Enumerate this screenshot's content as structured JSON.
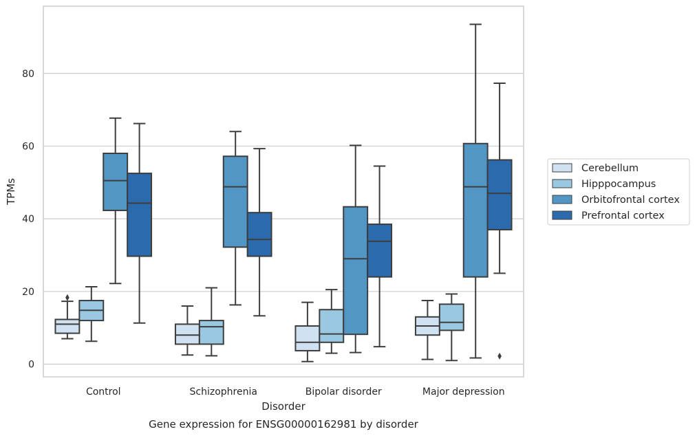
{
  "chart_data": {
    "type": "box",
    "title": "Gene expression for ENSG00000162981 by disorder",
    "xlabel": "Disorder",
    "ylabel": "TPMs",
    "ylim": [
      -3.5,
      98.5
    ],
    "yticks": [
      0,
      20,
      40,
      60,
      80
    ],
    "grid": true,
    "legend_position": "right",
    "categories": [
      "Control",
      "Schizophrenia",
      "Bipolar disorder",
      "Major depression"
    ],
    "series": [
      {
        "name": "Cerebellum",
        "color": "#d0e1f2",
        "boxes": [
          {
            "whisker_low": 7,
            "q1": 8.5,
            "median": 11,
            "q3": 12.3,
            "whisker_high": 17.3,
            "outliers": [
              18.3
            ]
          },
          {
            "whisker_low": 2.5,
            "q1": 5.5,
            "median": 8,
            "q3": 11,
            "whisker_high": 16,
            "outliers": []
          },
          {
            "whisker_low": 0.7,
            "q1": 3.7,
            "median": 6,
            "q3": 10.5,
            "whisker_high": 17,
            "outliers": []
          },
          {
            "whisker_low": 1.3,
            "q1": 8,
            "median": 10.5,
            "q3": 13,
            "whisker_high": 17.5,
            "outliers": []
          }
        ]
      },
      {
        "name": "Hipppocampus",
        "color": "#9ac8e0",
        "boxes": [
          {
            "whisker_low": 6.3,
            "q1": 12,
            "median": 14.8,
            "q3": 17.5,
            "whisker_high": 21.3,
            "outliers": []
          },
          {
            "whisker_low": 2.3,
            "q1": 5.5,
            "median": 10.3,
            "q3": 12,
            "whisker_high": 21,
            "outliers": []
          },
          {
            "whisker_low": 3,
            "q1": 6,
            "median": 8.3,
            "q3": 15,
            "whisker_high": 20.5,
            "outliers": []
          },
          {
            "whisker_low": 1,
            "q1": 9.3,
            "median": 11.5,
            "q3": 16.5,
            "whisker_high": 19.3,
            "outliers": []
          }
        ]
      },
      {
        "name": "Orbitofrontal cortex",
        "color": "#5296c6",
        "boxes": [
          {
            "whisker_low": 22.2,
            "q1": 42.3,
            "median": 50.5,
            "q3": 58,
            "whisker_high": 67.7,
            "outliers": []
          },
          {
            "whisker_low": 16.3,
            "q1": 32.2,
            "median": 48.8,
            "q3": 57.2,
            "whisker_high": 64,
            "outliers": []
          },
          {
            "whisker_low": 3.2,
            "q1": 8.2,
            "median": 29,
            "q3": 43.3,
            "whisker_high": 60.2,
            "outliers": []
          },
          {
            "whisker_low": 1.7,
            "q1": 24,
            "median": 48.8,
            "q3": 60.7,
            "whisker_high": 93.5,
            "outliers": []
          }
        ]
      },
      {
        "name": "Prefrontal cortex",
        "color": "#2a6aad",
        "boxes": [
          {
            "whisker_low": 11.3,
            "q1": 29.7,
            "median": 44.3,
            "q3": 52.5,
            "whisker_high": 66.2,
            "outliers": []
          },
          {
            "whisker_low": 13.3,
            "q1": 29.7,
            "median": 34.3,
            "q3": 41.7,
            "whisker_high": 59.3,
            "outliers": []
          },
          {
            "whisker_low": 4.8,
            "q1": 24,
            "median": 33.8,
            "q3": 38.5,
            "whisker_high": 54.5,
            "outliers": []
          },
          {
            "whisker_low": 25,
            "q1": 37,
            "median": 47,
            "q3": 56.2,
            "whisker_high": 77.3,
            "outliers": [
              2.2
            ]
          }
        ]
      }
    ]
  }
}
